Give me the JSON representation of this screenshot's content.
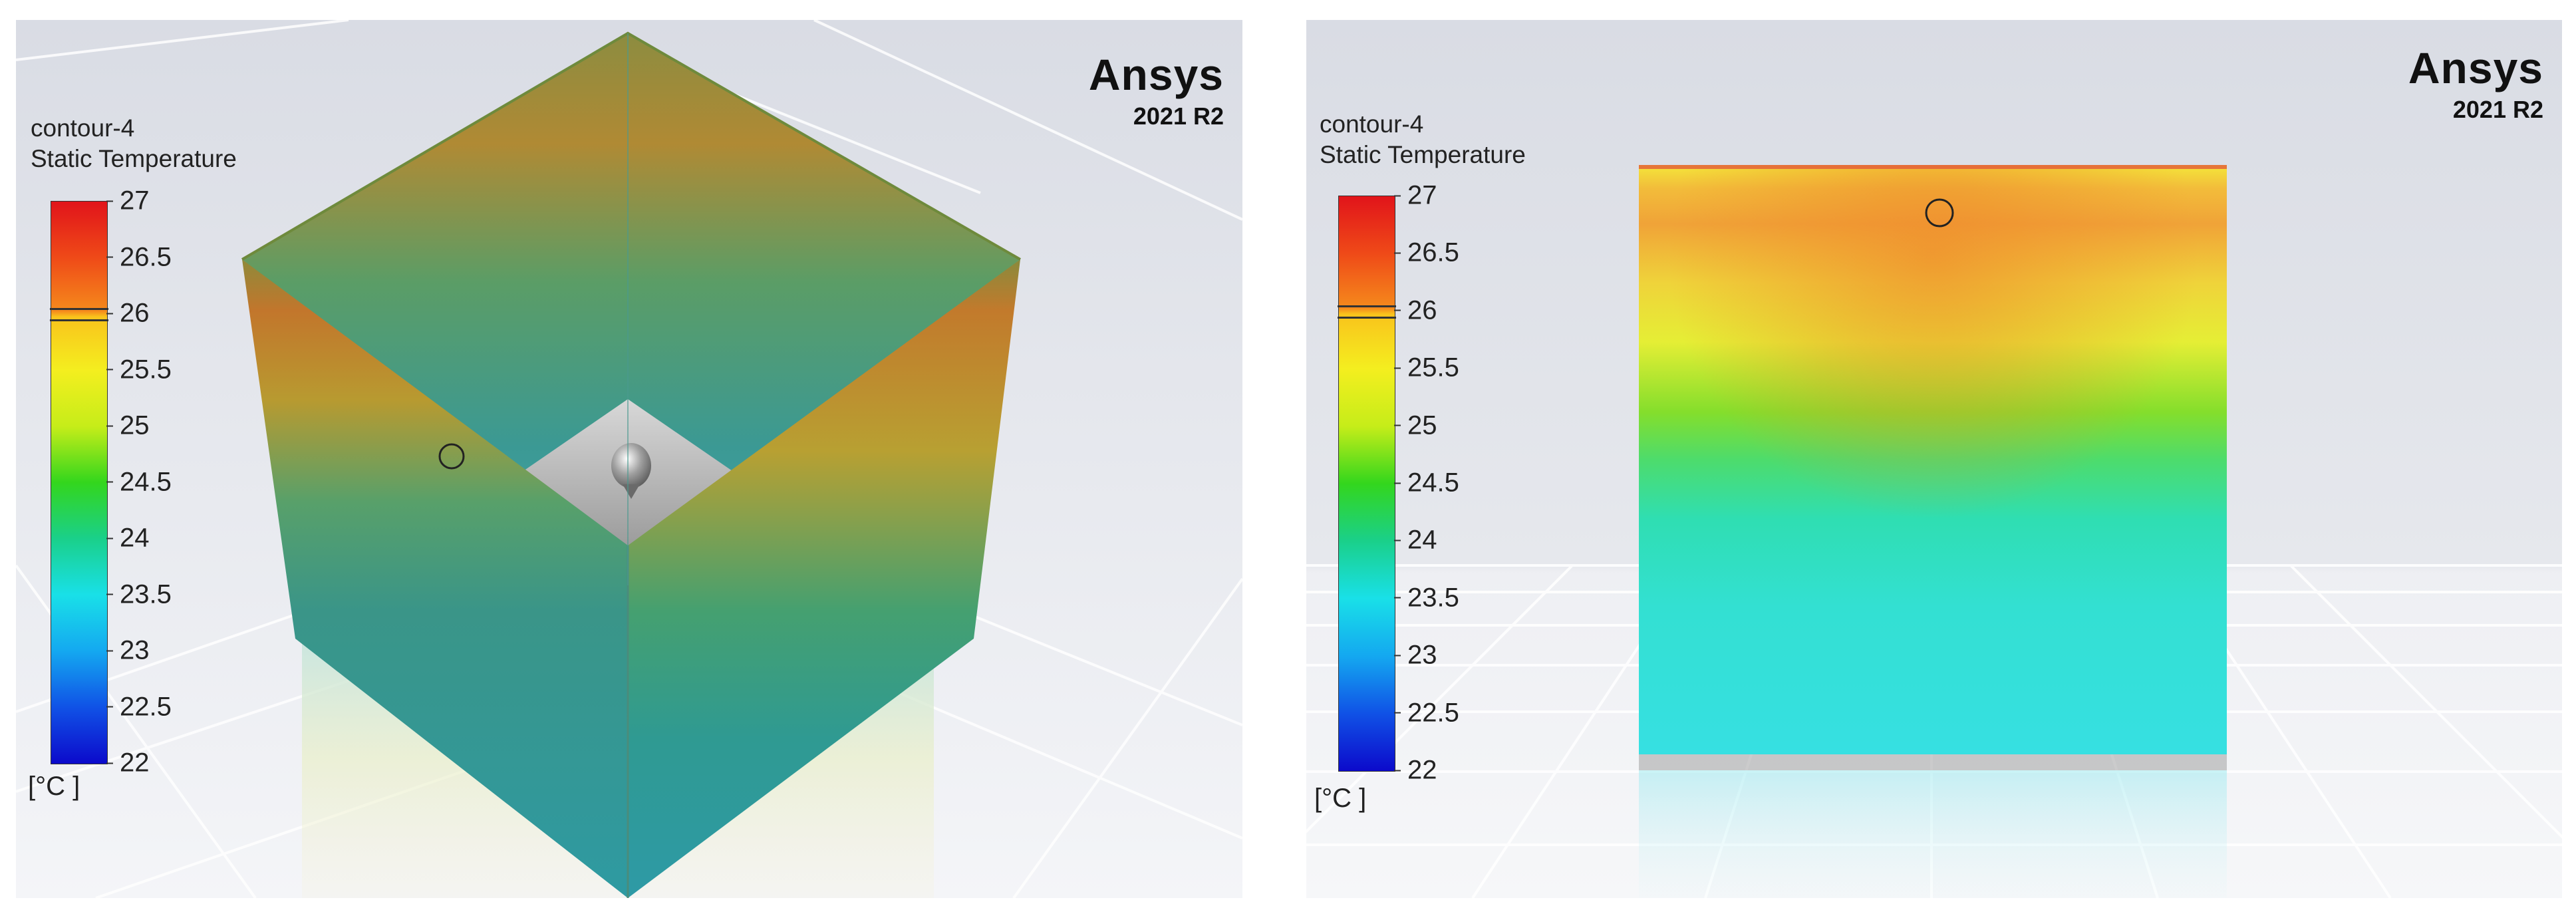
{
  "panels": [
    {
      "brand": {
        "logo": "Ansys",
        "version": "2021 R2"
      },
      "legend": {
        "name": "contour-4",
        "variable": "Static Temperature",
        "ticks": [
          "27",
          "26.5",
          "26",
          "25.5",
          "25",
          "24.5",
          "24",
          "23.5",
          "23",
          "22.5",
          "22"
        ],
        "unit": "[°C ]"
      },
      "view": "isometric cube with open top, interior bottom face visible"
    },
    {
      "brand": {
        "logo": "Ansys",
        "version": "2021 R2"
      },
      "legend": {
        "name": "contour-4",
        "variable": "Static Temperature",
        "ticks": [
          "27",
          "26.5",
          "26",
          "25.5",
          "25",
          "24.5",
          "24",
          "23.5",
          "23",
          "22.5",
          "22"
        ],
        "unit": "[°C ]"
      },
      "view": "front face of domain"
    }
  ],
  "colors": {
    "colormap_top": "#e1141a",
    "colormap_mid": "#33d61d",
    "colormap_bottom": "#0c0acb",
    "background_top": "#dadde5",
    "background_bottom": "#f3f4f7"
  }
}
